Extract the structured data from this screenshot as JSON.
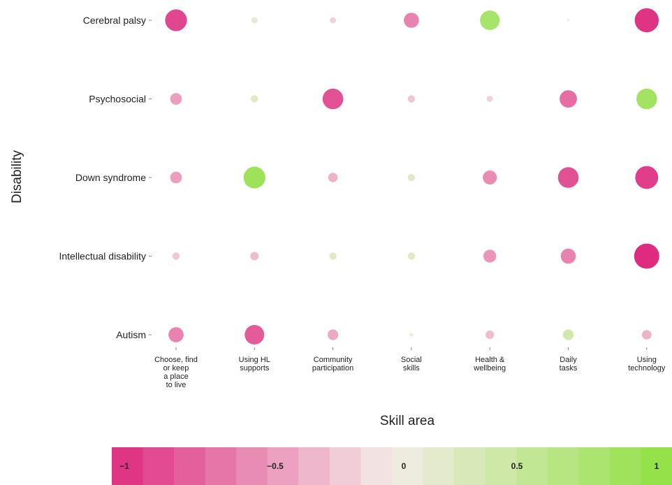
{
  "chart_data": {
    "type": "bubble-heatmap",
    "title": "",
    "xlabel": "Skill area",
    "ylabel": "Disability",
    "rows": [
      "Cerebral palsy",
      "Psychosocial",
      "Down syndrome",
      "Intellectual disability",
      "Autism"
    ],
    "columns": [
      [
        "Choose, find",
        "or keep",
        "a place",
        "to live"
      ],
      [
        "Using HL",
        "supports"
      ],
      [
        "Community",
        "participation"
      ],
      [
        "Social",
        "skills"
      ],
      [
        "Health &",
        "wellbeing"
      ],
      [
        "Daily",
        "tasks"
      ],
      [
        "Using",
        "technology"
      ]
    ],
    "values": [
      [
        -0.85,
        0.15,
        -0.15,
        -0.55,
        0.75,
        0.0,
        -0.95
      ],
      [
        -0.4,
        0.2,
        -0.8,
        -0.2,
        -0.15,
        -0.65,
        0.8
      ],
      [
        -0.4,
        0.85,
        -0.3,
        0.2,
        -0.5,
        -0.8,
        -0.9
      ],
      [
        -0.2,
        -0.25,
        0.2,
        0.2,
        -0.45,
        -0.55,
        -1.0
      ],
      [
        -0.55,
        -0.75,
        -0.35,
        0.05,
        -0.25,
        0.35,
        -0.3
      ]
    ],
    "legend": {
      "ticks": [
        {
          "value": -1,
          "label": "−1"
        },
        {
          "value": -0.5,
          "label": "−0.5"
        },
        {
          "value": 0,
          "label": "0"
        },
        {
          "value": 0.5,
          "label": "0.5"
        },
        {
          "value": 1,
          "label": "1"
        }
      ],
      "range": [
        -1,
        1
      ],
      "placement": "bottom"
    },
    "colors": {
      "negative": "#de2a7f",
      "neutral": "#f4ede8",
      "positive": "#8fe040"
    }
  }
}
